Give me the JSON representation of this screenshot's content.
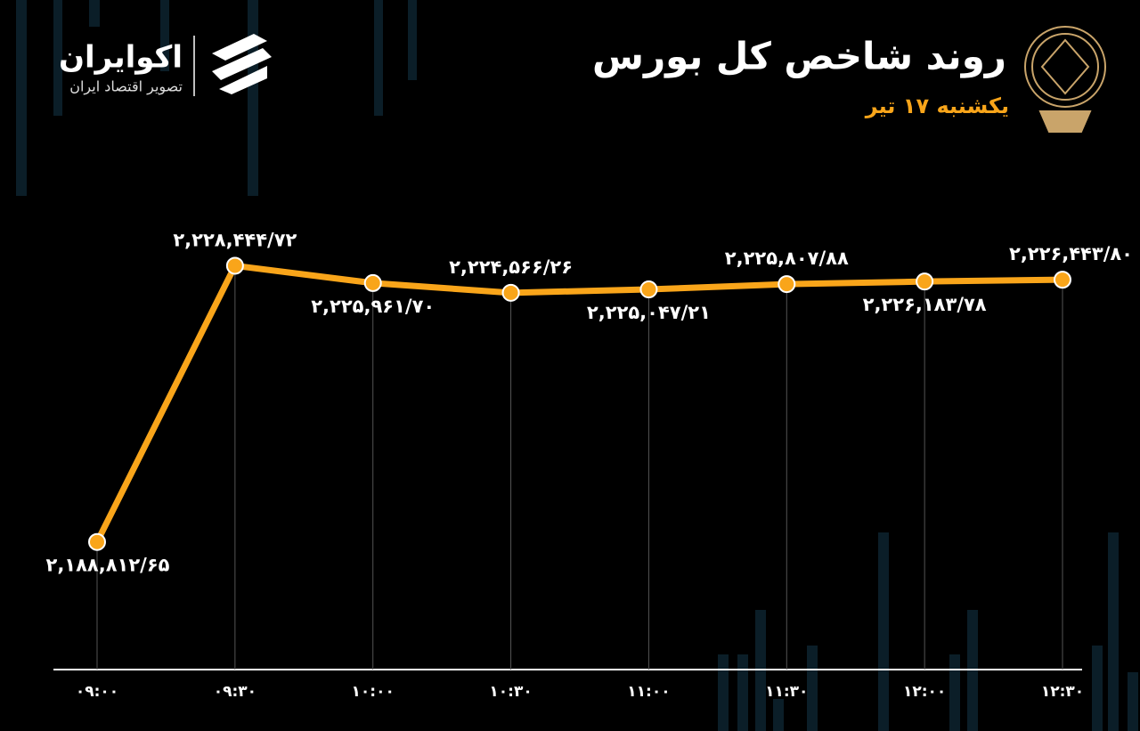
{
  "brand": {
    "name": "اکوایران",
    "tagline": "تصویر اقتصاد ایران"
  },
  "chart_data": {
    "type": "line",
    "title": "روند شاخص کل بورس",
    "subtitle": "یکشنبه ۱۷ تیر",
    "categories": [
      "۰۹:۰۰",
      "۰۹:۳۰",
      "۱۰:۰۰",
      "۱۰:۳۰",
      "۱۱:۰۰",
      "۱۱:۳۰",
      "۱۲:۰۰",
      "۱۲:۳۰"
    ],
    "values": [
      2188812.65,
      2228444.72,
      2225961.7,
      2224566.26,
      2225047.21,
      2225807.88,
      2226183.78,
      2226443.8
    ],
    "value_labels": [
      "۲,۱۸۸,۸۱۲/۶۵",
      "۲,۲۲۸,۴۴۴/۷۲",
      "۲,۲۲۵,۹۶۱/۷۰",
      "۲,۲۲۴,۵۶۶/۲۶",
      "۲,۲۲۵,۰۴۷/۲۱",
      "۲,۲۲۵,۸۰۷/۸۸",
      "۲,۲۲۶,۱۸۳/۷۸",
      "۲,۲۲۶,۴۴۳/۸۰"
    ],
    "color": "#f9a51a",
    "ylim": [
      2170000,
      2240000
    ]
  }
}
